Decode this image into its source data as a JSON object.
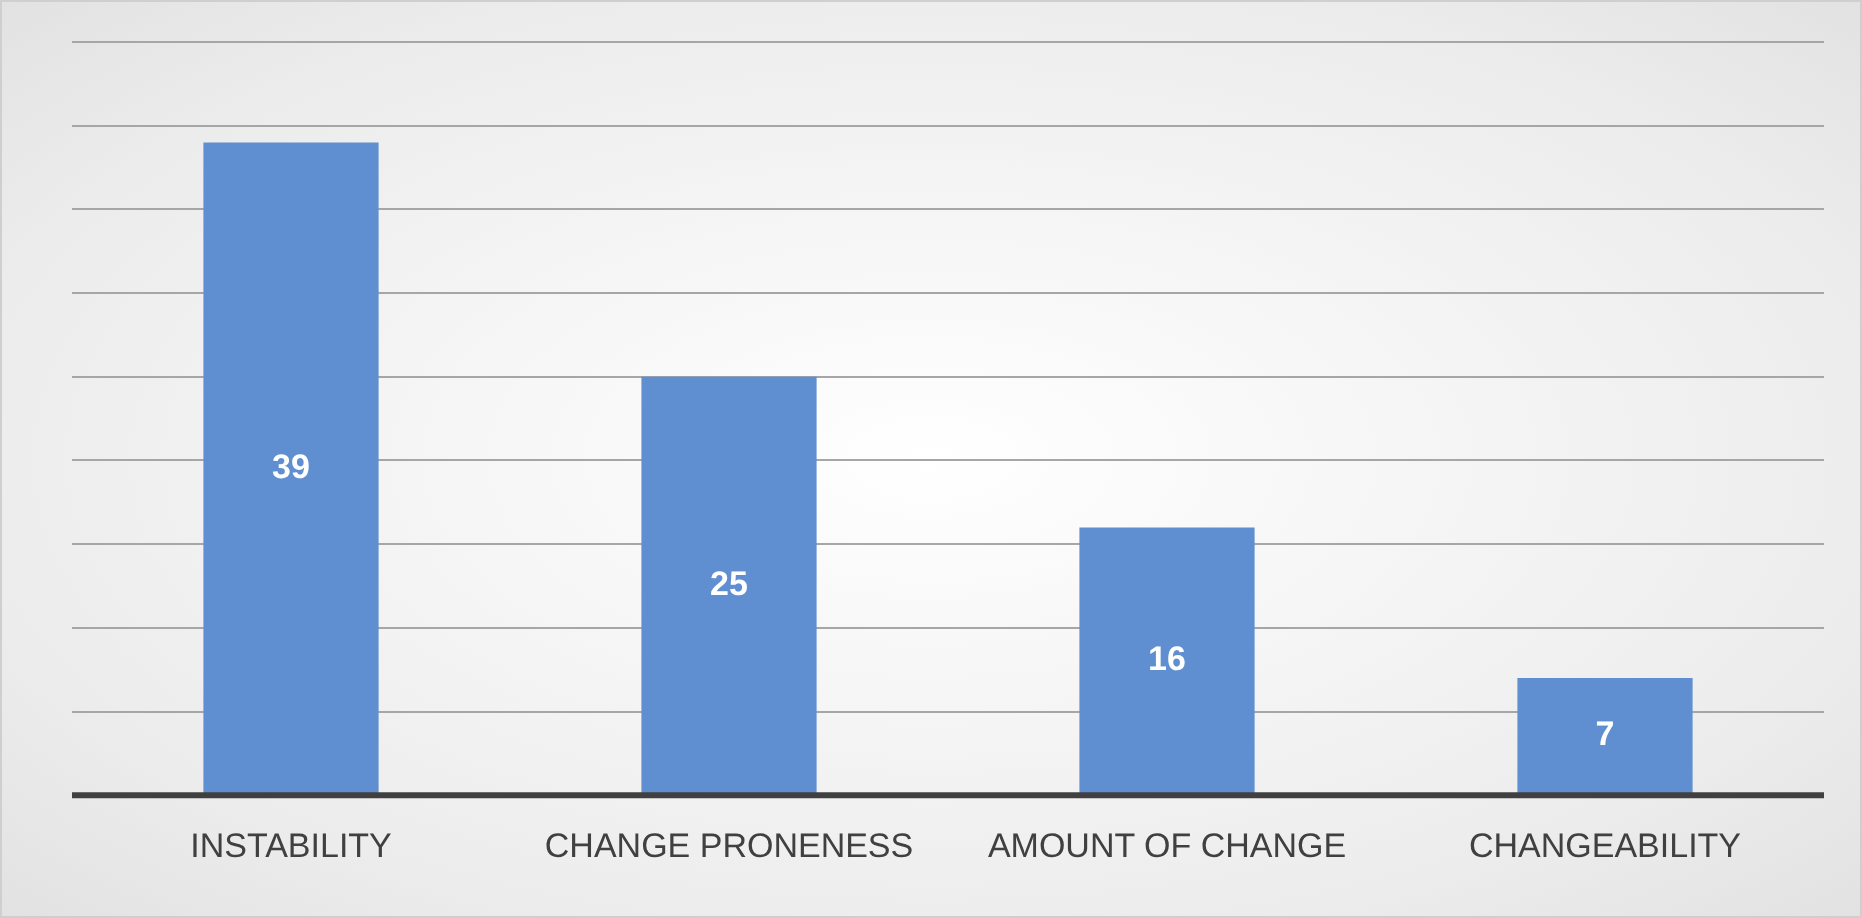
{
  "chart_data": {
    "type": "bar",
    "categories": [
      "INSTABILITY",
      "CHANGE PRONENESS",
      "AMOUNT OF CHANGE",
      "CHANGEABILITY"
    ],
    "values": [
      39,
      25,
      16,
      7
    ],
    "color": "#5f8fd0",
    "ylim": [
      0,
      45
    ],
    "yticks": [
      {
        "value": 0,
        "label": null
      },
      {
        "value": 5,
        "label": null
      },
      {
        "value": 10,
        "label": null
      },
      {
        "value": 15,
        "label": null
      },
      {
        "value": 20,
        "label": null
      },
      {
        "value": 25,
        "label": null
      },
      {
        "value": 30,
        "label": null
      },
      {
        "value": 35,
        "label": null
      },
      {
        "value": 40,
        "label": null
      },
      {
        "value": 45,
        "label": null
      }
    ],
    "tick_labels": "x",
    "grid": "y",
    "legend": false,
    "data_labels": true
  }
}
